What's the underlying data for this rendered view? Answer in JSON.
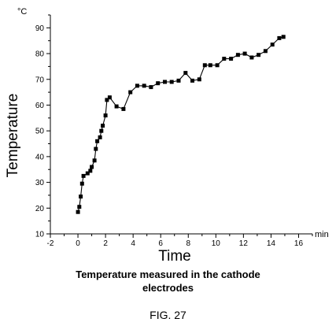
{
  "chart_data": {
    "type": "line",
    "title": "",
    "caption_lines": [
      "Temperature measured in the cathode",
      "electrodes"
    ],
    "figure_label": "FIG. 27",
    "xlabel": "Time",
    "ylabel": "Temperature",
    "x_unit": "min",
    "y_unit": "°C",
    "xlim": [
      -2,
      17
    ],
    "ylim": [
      10,
      95
    ],
    "x_ticks": [
      -2,
      0,
      2,
      4,
      6,
      8,
      10,
      12,
      14,
      16
    ],
    "y_ticks": [
      10,
      20,
      30,
      40,
      50,
      60,
      70,
      80,
      90
    ],
    "grid": false,
    "legend": "none",
    "marker": "square",
    "series": [
      {
        "x": [
          0.0,
          0.1,
          0.2,
          0.3,
          0.4,
          0.7,
          0.9,
          1.0,
          1.2,
          1.3,
          1.4,
          1.6,
          1.7,
          1.8,
          2.0,
          2.1,
          2.3,
          2.8,
          3.3,
          3.8,
          4.3,
          4.8,
          5.3,
          5.8,
          6.3,
          6.8,
          7.3,
          7.8,
          8.3,
          8.8,
          9.2,
          9.6,
          10.1,
          10.6,
          11.1,
          11.6,
          12.1,
          12.6,
          13.1,
          13.6,
          14.1,
          14.6,
          14.9
        ],
        "y": [
          18.5,
          20.5,
          24.5,
          29.5,
          32.5,
          33.5,
          34.5,
          36,
          38.5,
          43,
          46,
          47.5,
          50,
          52,
          56,
          62,
          63,
          59.5,
          58.5,
          65,
          67.5,
          67.5,
          67,
          68.5,
          69,
          69,
          69.5,
          72.5,
          69.5,
          70,
          75.5,
          75.5,
          75.5,
          78,
          78,
          79.5,
          80,
          78.5,
          79.5,
          81,
          83.5,
          86,
          86.5
        ]
      }
    ]
  }
}
